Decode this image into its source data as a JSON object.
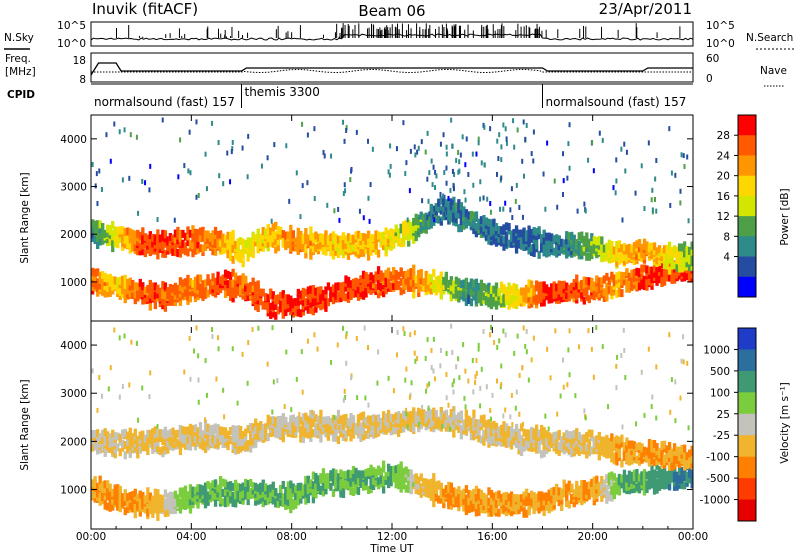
{
  "header": {
    "station": "Inuvik (fitACF)",
    "beam": "Beam 06",
    "date": "23/Apr/2011"
  },
  "strips": {
    "nsky_label": "N.Sky",
    "nsearch_label": "N.Search",
    "freq_label_1": "Freq.",
    "freq_label_2": "[MHz]",
    "nave_label": "Nave",
    "cpid_label": "CPID",
    "nsky_ticks": [
      "10^5",
      "10^0"
    ],
    "nsearch_ticks": [
      "10^5",
      "10^0"
    ],
    "freq_ticks": [
      "8",
      "18"
    ],
    "nave_ticks": [
      "60",
      "0"
    ]
  },
  "cpid": {
    "segments": [
      {
        "name": "normalsound (fast)",
        "id": "157",
        "start_hour": 0.0,
        "end_hour": 6.0
      },
      {
        "name": "themis",
        "id": "3300",
        "start_hour": 6.0,
        "end_hour": 18.0
      },
      {
        "name": "normalsound (fast)",
        "id": "157",
        "start_hour": 18.0,
        "end_hour": 24.0
      }
    ]
  },
  "x_axis": {
    "title": "Time UT",
    "ticks": [
      "00:00",
      "04:00",
      "08:00",
      "12:00",
      "16:00",
      "20:00",
      "00:00"
    ]
  },
  "colorbar_power": {
    "title": "Power [dB]",
    "labels": [
      "28",
      "24",
      "20",
      "16",
      "12",
      "8",
      "4"
    ],
    "colors": [
      "#ff0000",
      "#ff5a00",
      "#ff9600",
      "#ffd700",
      "#d2e600",
      "#4ea048",
      "#2f8a8a",
      "#244ca0",
      "#0000ff"
    ]
  },
  "colorbar_velocity": {
    "title": "Velocity [m s⁻¹]",
    "labels": [
      "1000",
      "500",
      "100",
      "25",
      "-25",
      "-100",
      "-500",
      "-1000"
    ],
    "colors": [
      "#1e3cc8",
      "#2c6e9e",
      "#3f9a74",
      "#7ccd3d",
      "#c3c3bb",
      "#f0b42d",
      "#ff7f00",
      "#ff3c00",
      "#e60000"
    ]
  },
  "chart_data": [
    {
      "type": "heatmap",
      "title": "Power",
      "ylabel": "Slant Range [km]",
      "xlabel": "",
      "xlim_hours": [
        0,
        24
      ],
      "ylim": [
        180,
        4500
      ],
      "y_ticks": [
        "1000",
        "2000",
        "3000",
        "4000"
      ],
      "colorbar": "colorbar_power",
      "bands": [
        {
          "label": "lower band",
          "hours": [
            0,
            1,
            2,
            3,
            4,
            5,
            6,
            7,
            8,
            9,
            10,
            11,
            12,
            13,
            14,
            15,
            16,
            17,
            18,
            19,
            20,
            21,
            22,
            23,
            24
          ],
          "range_km": [
            1000,
            900,
            750,
            700,
            850,
            950,
            900,
            550,
            500,
            650,
            800,
            950,
            1050,
            1000,
            900,
            800,
            700,
            700,
            750,
            800,
            850,
            950,
            1100,
            1200,
            1250
          ],
          "power_db": [
            26,
            20,
            28,
            26,
            24,
            28,
            26,
            28,
            28,
            28,
            28,
            28,
            26,
            24,
            16,
            10,
            14,
            20,
            28,
            28,
            26,
            22,
            28,
            28,
            28
          ]
        },
        {
          "label": "upper band",
          "hours": [
            0,
            1,
            2,
            3,
            4,
            5,
            6,
            7,
            8,
            9,
            10,
            11,
            12,
            13,
            14,
            15,
            16,
            17,
            18,
            19,
            20,
            21,
            22,
            23,
            24
          ],
          "range_km": [
            2050,
            1950,
            1800,
            1800,
            1850,
            1850,
            1650,
            1950,
            1850,
            1800,
            1750,
            1800,
            1900,
            2150,
            2550,
            2300,
            2000,
            1900,
            1800,
            1750,
            1750,
            1550,
            1650,
            1500,
            1500
          ],
          "power_db": [
            10,
            18,
            28,
            28,
            26,
            24,
            18,
            20,
            24,
            22,
            20,
            22,
            18,
            14,
            8,
            10,
            8,
            8,
            8,
            10,
            14,
            20,
            24,
            18,
            14
          ]
        }
      ]
    },
    {
      "type": "heatmap",
      "title": "Velocity",
      "ylabel": "Slant Range [km]",
      "xlabel": "Time UT",
      "xlim_hours": [
        0,
        24
      ],
      "ylim": [
        180,
        4500
      ],
      "y_ticks": [
        "1000",
        "2000",
        "3000",
        "4000"
      ],
      "colorbar": "colorbar_velocity",
      "bands": [
        {
          "label": "lower band",
          "hours": [
            0,
            1,
            2,
            3,
            4,
            5,
            6,
            7,
            8,
            9,
            10,
            11,
            12,
            13,
            14,
            15,
            16,
            17,
            18,
            19,
            20,
            21,
            22,
            23,
            24
          ],
          "range_km": [
            1000,
            800,
            700,
            700,
            850,
            950,
            900,
            900,
            850,
            1100,
            1150,
            1200,
            1300,
            1100,
            900,
            750,
            700,
            700,
            750,
            900,
            1000,
            1100,
            1200,
            1250,
            1300
          ],
          "velocity_ms": [
            -100,
            -100,
            -100,
            -25,
            100,
            100,
            100,
            100,
            100,
            100,
            100,
            100,
            100,
            -25,
            -100,
            -100,
            -100,
            -100,
            -100,
            -100,
            -100,
            100,
            100,
            500,
            500
          ]
        },
        {
          "label": "upper band",
          "hours": [
            0,
            1,
            2,
            3,
            4,
            5,
            6,
            7,
            8,
            9,
            10,
            11,
            12,
            13,
            14,
            15,
            16,
            17,
            18,
            19,
            20,
            21,
            22,
            23,
            24
          ],
          "range_km": [
            2000,
            1950,
            2000,
            2000,
            2100,
            2100,
            2000,
            2300,
            2300,
            2300,
            2300,
            2300,
            2350,
            2450,
            2450,
            2350,
            2150,
            2050,
            2000,
            1950,
            1950,
            1800,
            1750,
            1700,
            1650
          ],
          "velocity_ms": [
            -25,
            -25,
            -25,
            -25,
            -25,
            -25,
            -25,
            -25,
            -25,
            -25,
            -25,
            -25,
            -25,
            -25,
            -25,
            -25,
            -25,
            -25,
            -25,
            -25,
            -25,
            -100,
            -100,
            -100,
            -100
          ]
        }
      ]
    }
  ]
}
